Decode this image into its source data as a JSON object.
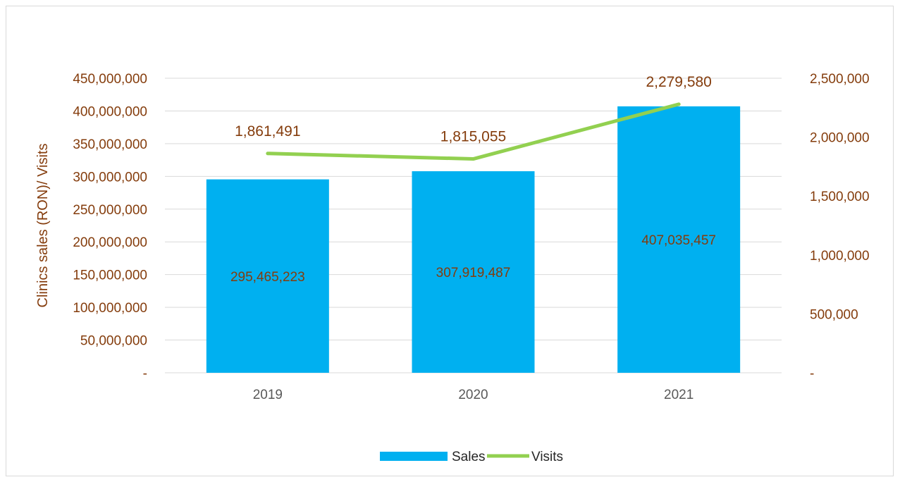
{
  "chart_data": {
    "type": "bar",
    "categories": [
      "2019",
      "2020",
      "2021"
    ],
    "series": [
      {
        "name": "Sales",
        "type": "bar",
        "axis": "left",
        "values": [
          295465223,
          307919487,
          407035457
        ],
        "value_labels": [
          "295,465,223",
          "307,919,487",
          "407,035,457"
        ]
      },
      {
        "name": "Visits",
        "type": "line",
        "axis": "right",
        "values": [
          1861491,
          1815055,
          2279580
        ],
        "value_labels": [
          "1,861,491",
          "1,815,055",
          "2,279,580"
        ]
      }
    ],
    "title": "",
    "ylabel": "Clinics sales (RON)/ Visits",
    "ylim": [
      0,
      450000000
    ],
    "y2lim": [
      0,
      2500000
    ],
    "y_ticks": [
      "-",
      "50,000,000",
      "100,000,000",
      "150,000,000",
      "200,000,000",
      "250,000,000",
      "300,000,000",
      "350,000,000",
      "400,000,000",
      "450,000,000"
    ],
    "y2_ticks": [
      "-",
      "500,000",
      "1,000,000",
      "1,500,000",
      "2,000,000",
      "2,500,000"
    ],
    "grid": true,
    "legend_position": "bottom",
    "colors": {
      "bar": "#00B0F0",
      "line": "#92D050",
      "text": "#843C0C",
      "axis_text": "#595959",
      "grid": "#d9d9d9"
    }
  }
}
